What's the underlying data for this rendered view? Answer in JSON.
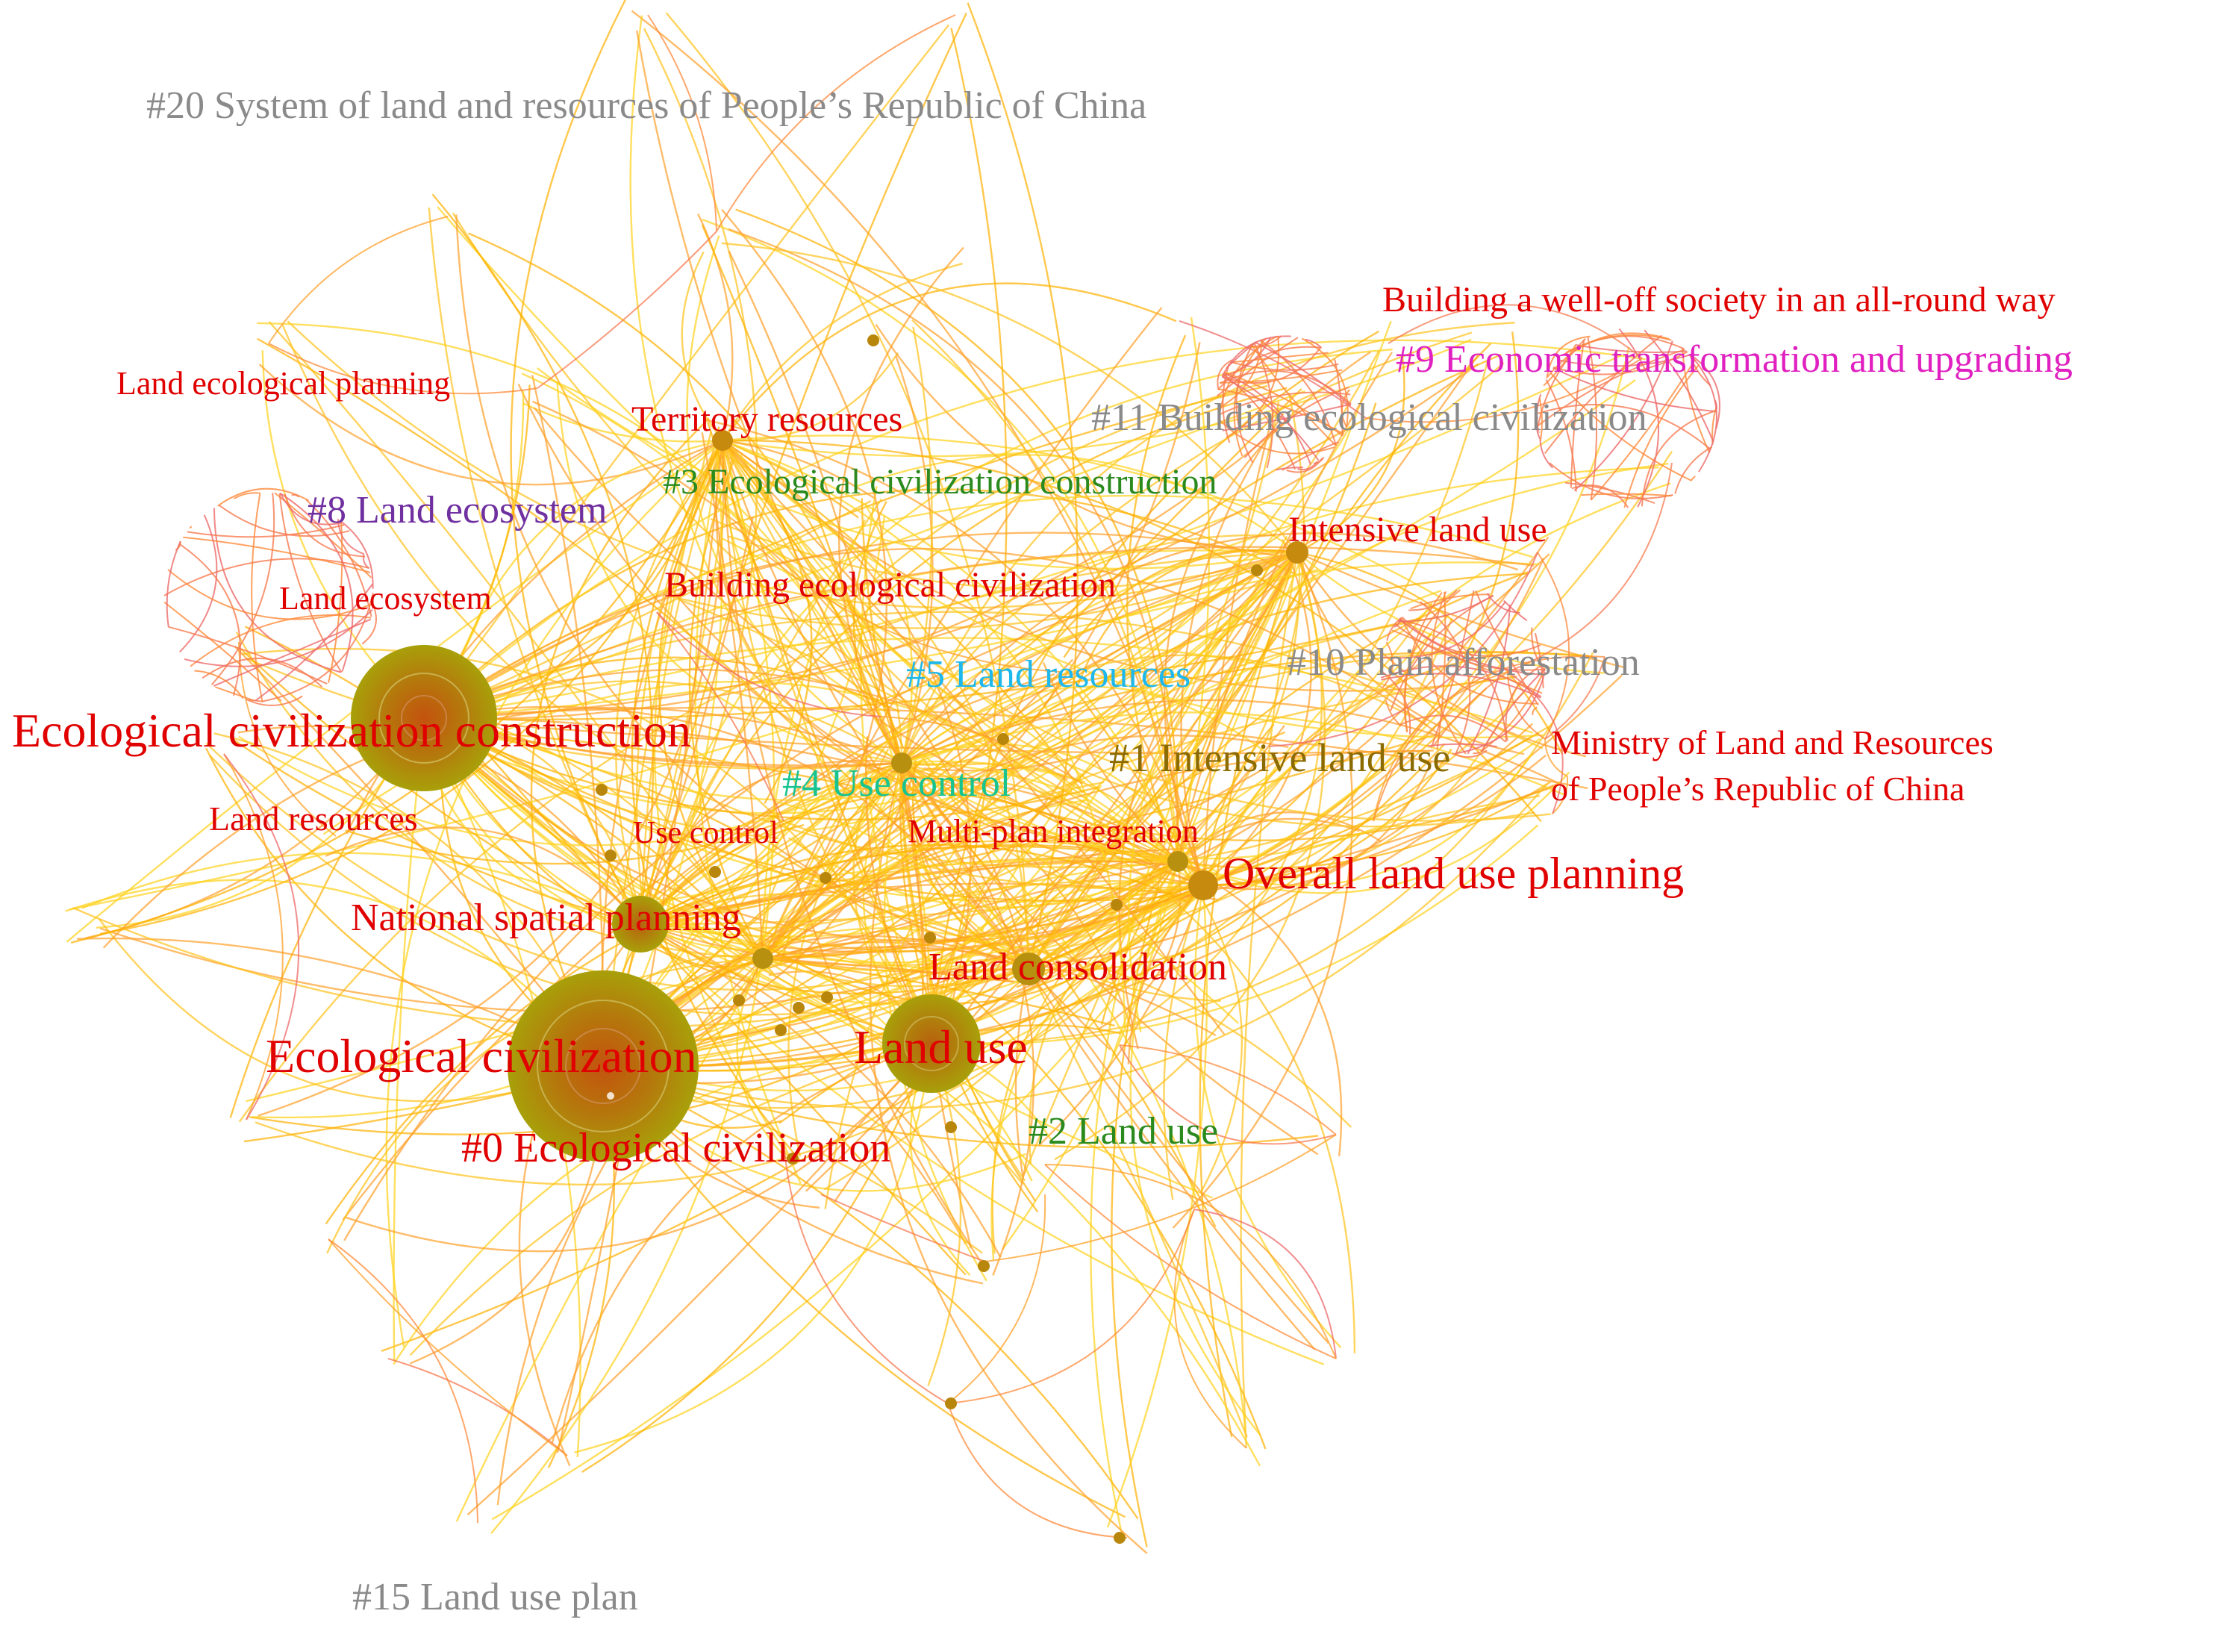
{
  "colors": {
    "background": "#ffffff",
    "edge_palette": [
      "#ffd21a",
      "#ffc21a",
      "#ffb000",
      "#ffa02a",
      "#ff8a3a",
      "#f77a50",
      "#ee6a6a"
    ],
    "node_outer": "#a8a00a",
    "node_inner": "#c4520e",
    "node_small": "#b8860b",
    "keyword_label": "#e00000"
  },
  "keywords": [
    {
      "id": "eco-civ-construction",
      "label": "Ecological civilization construction",
      "size": "large"
    },
    {
      "id": "eco-civ",
      "label": "Ecological civilization",
      "size": "large"
    },
    {
      "id": "land-use",
      "label": "Land use",
      "size": "large"
    },
    {
      "id": "overall-land-use-planning",
      "label": "Overall land use planning",
      "size": "large"
    },
    {
      "id": "national-spatial-planning",
      "label": "National spatial planning",
      "size": "medium"
    },
    {
      "id": "land-consolidation",
      "label": "Land consolidation",
      "size": "medium"
    },
    {
      "id": "territory-resources",
      "label": "Territory resources",
      "size": "medium"
    },
    {
      "id": "intensive-land-use",
      "label": "Intensive land use",
      "size": "medium"
    },
    {
      "id": "building-eco-civ",
      "label": "Building ecological civilization",
      "size": "medium"
    },
    {
      "id": "land-ecological-planning",
      "label": "Land ecological planning",
      "size": "small"
    },
    {
      "id": "land-ecosystem",
      "label": "Land ecosystem",
      "size": "small"
    },
    {
      "id": "land-resources",
      "label": "Land resources",
      "size": "medium"
    },
    {
      "id": "use-control",
      "label": "Use control",
      "size": "small"
    },
    {
      "id": "multi-plan-integration",
      "label": "Multi-plan integration",
      "size": "small"
    },
    {
      "id": "well-off-society",
      "label": "Building a well-off society in an all-round way",
      "size": "medium"
    },
    {
      "id": "ministry-1",
      "label": "Ministry of Land and Resources",
      "size": "medium"
    },
    {
      "id": "ministry-2",
      "label": "of People’s Republic of China",
      "size": "medium"
    }
  ],
  "clusters": [
    {
      "label": "#0 Ecological civilization",
      "color": "#e00000"
    },
    {
      "label": "#1 Intensive land use",
      "color": "#8b6a00"
    },
    {
      "label": "#2 Land use",
      "color": "#2a8a1e"
    },
    {
      "label": "#3 Ecological civilization construction",
      "color": "#2a8a1e"
    },
    {
      "label": "#4 Use control",
      "color": "#17c490"
    },
    {
      "label": "#5 Land resources",
      "color": "#1fb8ec"
    },
    {
      "label": "#8 Land ecosystem",
      "color": "#7030a0"
    },
    {
      "label": "#9 Economic transformation and upgrading",
      "color": "#e020c0"
    },
    {
      "label": "#10 Plain afforestation",
      "color": "#8a8a8a"
    },
    {
      "label": "#11 Building ecological civilization",
      "color": "#8a8a8a"
    },
    {
      "label": "#15 Land use plan",
      "color": "#8a8a8a"
    },
    {
      "label": "#20 System of land and resources of People’s Republic of China",
      "color": "#8a8a8a"
    }
  ]
}
